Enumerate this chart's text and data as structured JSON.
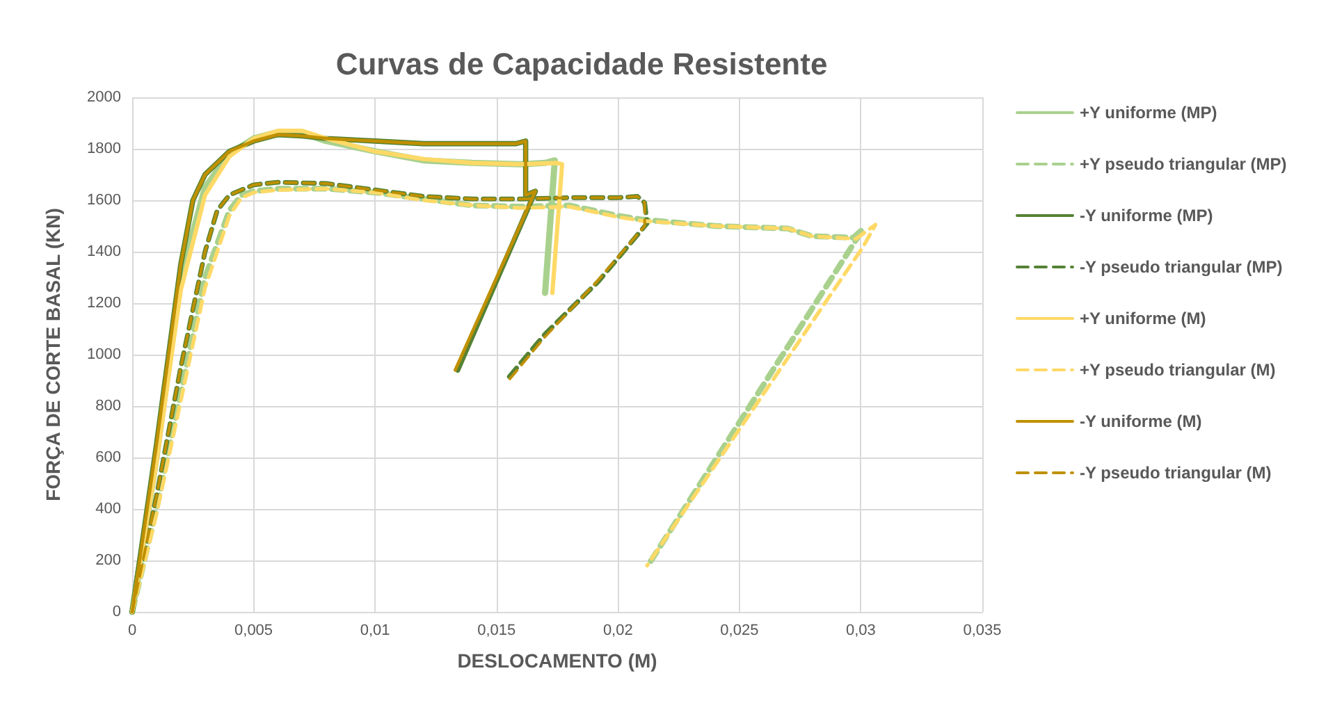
{
  "chart_data": {
    "type": "line",
    "title": "Curvas de Capacidade Resistente",
    "xlabel": "DESLOCAMENTO (M)",
    "ylabel": "FORÇA DE CORTE BASAL (KN)",
    "xlim": [
      0,
      0.035
    ],
    "xticks": [
      0,
      {
        "value": 0.005,
        "label": "0,005"
      },
      {
        "value": 0.01,
        "label": "0,01"
      },
      {
        "value": 0.015,
        "label": "0,015"
      },
      {
        "value": 0.02,
        "label": "0,02"
      },
      {
        "value": 0.025,
        "label": "0,025"
      },
      {
        "value": 0.03,
        "label": "0,03"
      },
      {
        "value": 0.035,
        "label": "0,035"
      }
    ],
    "ylim": [
      0,
      2000
    ],
    "yticks": [
      0,
      200,
      400,
      600,
      800,
      1000,
      1200,
      1400,
      1600,
      1800,
      2000
    ],
    "grid": true,
    "legend": "right",
    "marker": "none",
    "series": [
      {
        "name": "+Y uniforme (MP)",
        "color": "#a9d18e",
        "line_style": "solid",
        "x": [
          0,
          0.001,
          0.002,
          0.003,
          0.004,
          0.005,
          0.006,
          0.007,
          0.008,
          0.01,
          0.012,
          0.014,
          0.016,
          0.017,
          0.0174,
          0.017
        ],
        "values": [
          0,
          600,
          1300,
          1650,
          1780,
          1840,
          1865,
          1860,
          1830,
          1790,
          1755,
          1745,
          1740,
          1745,
          1755,
          1240
        ]
      },
      {
        "name": "+Y pseudo triangular (MP)",
        "color": "#a9d18e",
        "line_style": "dashed",
        "x": [
          0,
          0.001,
          0.002,
          0.003,
          0.004,
          0.0045,
          0.005,
          0.006,
          0.008,
          0.01,
          0.012,
          0.014,
          0.016,
          0.018,
          0.02,
          0.021,
          0.024,
          0.027,
          0.028,
          0.0297,
          0.0301,
          0.0212
        ],
        "values": [
          0,
          400,
          850,
          1300,
          1560,
          1620,
          1635,
          1645,
          1645,
          1630,
          1605,
          1580,
          1575,
          1580,
          1540,
          1525,
          1500,
          1490,
          1460,
          1455,
          1490,
          175
        ]
      },
      {
        "name": "-Y uniforme (MP)",
        "color": "#548235",
        "line_style": "solid",
        "x": [
          0,
          0.001,
          0.002,
          0.0025,
          0.003,
          0.004,
          0.005,
          0.006,
          0.007,
          0.008,
          0.01,
          0.012,
          0.014,
          0.0158,
          0.0162,
          0.0162,
          0.0166,
          0.0134
        ],
        "values": [
          0,
          650,
          1350,
          1600,
          1700,
          1790,
          1830,
          1855,
          1850,
          1840,
          1830,
          1820,
          1820,
          1820,
          1830,
          1620,
          1635,
          940
        ]
      },
      {
        "name": "-Y pseudo triangular (MP)",
        "color": "#548235",
        "line_style": "dashed",
        "x": [
          0,
          0.001,
          0.002,
          0.003,
          0.0035,
          0.004,
          0.005,
          0.006,
          0.008,
          0.01,
          0.012,
          0.014,
          0.016,
          0.018,
          0.02,
          0.0208,
          0.0211,
          0.0212,
          0.0192,
          0.017,
          0.0154
        ],
        "values": [
          0,
          450,
          950,
          1400,
          1560,
          1620,
          1660,
          1670,
          1665,
          1640,
          1615,
          1605,
          1605,
          1610,
          1610,
          1615,
          1590,
          1510,
          1285,
          1080,
          900
        ]
      },
      {
        "name": "+Y uniforme (M)",
        "color": "#ffd966",
        "line_style": "solid",
        "x": [
          0,
          0.001,
          0.002,
          0.003,
          0.004,
          0.005,
          0.006,
          0.007,
          0.008,
          0.01,
          0.012,
          0.014,
          0.016,
          0.0175,
          0.0177,
          0.0173
        ],
        "values": [
          0,
          580,
          1250,
          1620,
          1770,
          1840,
          1870,
          1870,
          1840,
          1790,
          1760,
          1745,
          1740,
          1745,
          1740,
          1240
        ]
      },
      {
        "name": "+Y pseudo triangular (M)",
        "color": "#ffd966",
        "line_style": "dashed",
        "x": [
          0,
          0.001,
          0.002,
          0.003,
          0.004,
          0.0045,
          0.005,
          0.006,
          0.008,
          0.01,
          0.012,
          0.014,
          0.016,
          0.018,
          0.02,
          0.021,
          0.024,
          0.027,
          0.028,
          0.0298,
          0.0306,
          0.0301,
          0.0212
        ],
        "values": [
          0,
          380,
          820,
          1260,
          1540,
          1610,
          1630,
          1640,
          1645,
          1630,
          1600,
          1580,
          1570,
          1575,
          1535,
          1520,
          1500,
          1490,
          1460,
          1450,
          1505,
          1420,
          180
        ]
      },
      {
        "name": "-Y uniforme (M)",
        "color": "#bf9000",
        "line_style": "solid",
        "x": [
          0,
          0.001,
          0.002,
          0.0025,
          0.003,
          0.004,
          0.005,
          0.006,
          0.007,
          0.008,
          0.01,
          0.012,
          0.014,
          0.0158,
          0.0162,
          0.0162,
          0.0166,
          0.0133
        ],
        "values": [
          0,
          650,
          1350,
          1600,
          1700,
          1790,
          1830,
          1855,
          1850,
          1840,
          1830,
          1820,
          1820,
          1820,
          1830,
          1620,
          1635,
          940
        ]
      },
      {
        "name": "-Y pseudo triangular (M)",
        "color": "#bf9000",
        "line_style": "dashed",
        "x": [
          0,
          0.001,
          0.002,
          0.003,
          0.0035,
          0.004,
          0.005,
          0.006,
          0.008,
          0.01,
          0.012,
          0.014,
          0.016,
          0.018,
          0.02,
          0.0208,
          0.0211,
          0.0211,
          0.0191,
          0.017,
          0.0155
        ],
        "values": [
          0,
          450,
          950,
          1400,
          1560,
          1620,
          1660,
          1670,
          1665,
          1640,
          1615,
          1605,
          1605,
          1610,
          1610,
          1615,
          1590,
          1500,
          1280,
          1070,
          900
        ]
      }
    ]
  }
}
